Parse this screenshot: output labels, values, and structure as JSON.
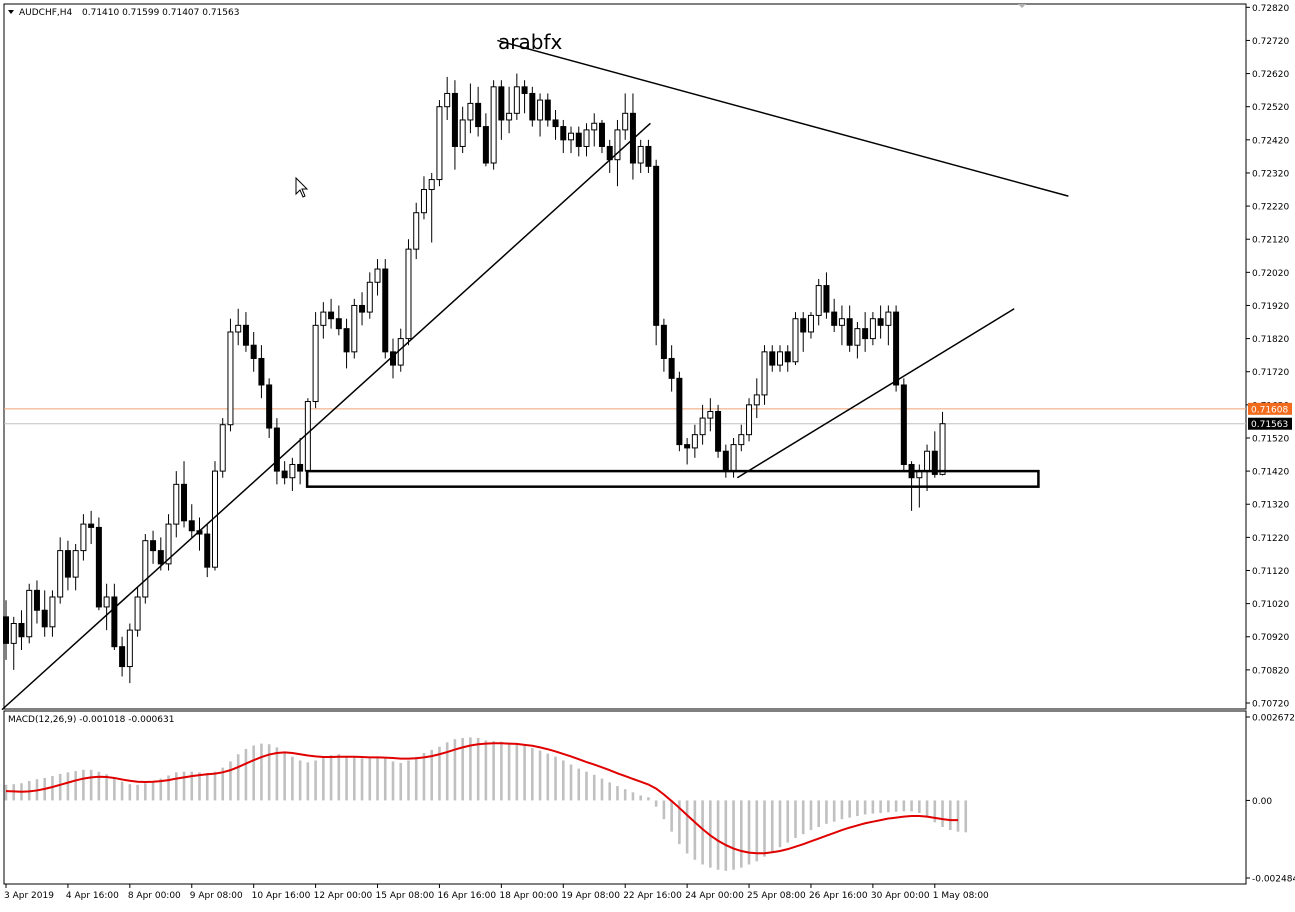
{
  "header": {
    "symbol_label": "AUDCHF,H4",
    "ohlc_text": "0.71410 0.71599 0.71407 0.71563"
  },
  "watermark": "arabfx",
  "price_axis": {
    "ticks": [
      "0.72820",
      "0.72720",
      "0.72620",
      "0.72520",
      "0.72420",
      "0.72320",
      "0.72220",
      "0.72120",
      "0.72020",
      "0.71920",
      "0.71820",
      "0.71720",
      "0.71620",
      "0.71520",
      "0.71420",
      "0.71320",
      "0.71220",
      "0.71120",
      "0.71020",
      "0.70920",
      "0.70820",
      "0.70720"
    ],
    "current_price_label": "0.71563",
    "ask_price_label": "0.71608"
  },
  "macd": {
    "label": "MACD(12,26,9) -0.001018 -0.000631",
    "ticks": [
      "0.002672",
      "0.00",
      "-0.002484"
    ]
  },
  "time_axis": {
    "labels": [
      "3 Apr 2019",
      "4 Apr 16:00",
      "8 Apr 00:00",
      "9 Apr 08:00",
      "10 Apr 16:00",
      "12 Apr 00:00",
      "15 Apr 08:00",
      "16 Apr 16:00",
      "18 Apr 00:00",
      "19 Apr 08:00",
      "22 Apr 16:00",
      "24 Apr 00:00",
      "25 Apr 08:00",
      "26 Apr 16:00",
      "30 Apr 00:00",
      "1 May 08:00"
    ]
  },
  "colors": {
    "background": "#ffffff",
    "grid": "#c8c8c8",
    "candle": "#000000",
    "ask_line": "#f0a070",
    "bid_line": "#c0c0c0",
    "ask_label_bg": "#f26b1d",
    "bid_label_bg": "#000000",
    "macd_histogram": "#c0c0c0",
    "macd_signal": "#e00000"
  },
  "chart_data": [
    {
      "type": "candlestick",
      "title": "AUDCHF,H4",
      "ylim": [
        0.707,
        0.7283
      ],
      "candles": [
        [
          0.7098,
          0.7103,
          0.7085,
          0.709
        ],
        [
          0.709,
          0.7098,
          0.7082,
          0.7096
        ],
        [
          0.7096,
          0.71,
          0.7088,
          0.7092
        ],
        [
          0.7092,
          0.7108,
          0.709,
          0.7106
        ],
        [
          0.7106,
          0.7109,
          0.7096,
          0.71
        ],
        [
          0.71,
          0.7106,
          0.7092,
          0.7095
        ],
        [
          0.7095,
          0.7106,
          0.7092,
          0.7104
        ],
        [
          0.7104,
          0.7122,
          0.7102,
          0.7118
        ],
        [
          0.7118,
          0.7121,
          0.7106,
          0.711
        ],
        [
          0.711,
          0.712,
          0.7106,
          0.7118
        ],
        [
          0.7118,
          0.7129,
          0.7115,
          0.7126
        ],
        [
          0.7126,
          0.713,
          0.712,
          0.7125
        ],
        [
          0.7125,
          0.7128,
          0.71,
          0.7101
        ],
        [
          0.7101,
          0.7108,
          0.7094,
          0.7104
        ],
        [
          0.7104,
          0.7108,
          0.7088,
          0.7089
        ],
        [
          0.7089,
          0.7092,
          0.708,
          0.7083
        ],
        [
          0.7083,
          0.7096,
          0.7078,
          0.7094
        ],
        [
          0.7094,
          0.7107,
          0.7092,
          0.7104
        ],
        [
          0.7104,
          0.7123,
          0.7102,
          0.7121
        ],
        [
          0.7121,
          0.7124,
          0.7114,
          0.7118
        ],
        [
          0.7118,
          0.7122,
          0.7112,
          0.7114
        ],
        [
          0.7114,
          0.7129,
          0.7112,
          0.7126
        ],
        [
          0.7126,
          0.7142,
          0.7122,
          0.7138
        ],
        [
          0.7138,
          0.7145,
          0.7125,
          0.7127
        ],
        [
          0.7127,
          0.7132,
          0.7122,
          0.7124
        ],
        [
          0.7124,
          0.7128,
          0.7118,
          0.7123
        ],
        [
          0.7123,
          0.7126,
          0.711,
          0.7113
        ],
        [
          0.7113,
          0.7145,
          0.7112,
          0.7142
        ],
        [
          0.7142,
          0.7158,
          0.714,
          0.7156
        ],
        [
          0.7156,
          0.7188,
          0.7154,
          0.7184
        ],
        [
          0.7184,
          0.7191,
          0.718,
          0.7186
        ],
        [
          0.7186,
          0.719,
          0.7178,
          0.718
        ],
        [
          0.718,
          0.7184,
          0.7172,
          0.7176
        ],
        [
          0.7176,
          0.718,
          0.7164,
          0.7168
        ],
        [
          0.7168,
          0.717,
          0.7152,
          0.7155
        ],
        [
          0.7155,
          0.7158,
          0.7138,
          0.7142
        ],
        [
          0.7142,
          0.7145,
          0.7138,
          0.714
        ],
        [
          0.714,
          0.7146,
          0.7136,
          0.7144
        ],
        [
          0.7144,
          0.7152,
          0.7138,
          0.7142
        ],
        [
          0.7142,
          0.7164,
          0.714,
          0.7163
        ],
        [
          0.7163,
          0.719,
          0.7161,
          0.7186
        ],
        [
          0.7186,
          0.7193,
          0.7182,
          0.719
        ],
        [
          0.719,
          0.7194,
          0.7185,
          0.7188
        ],
        [
          0.7188,
          0.7192,
          0.7183,
          0.7185
        ],
        [
          0.7185,
          0.7188,
          0.7173,
          0.7178
        ],
        [
          0.7178,
          0.7194,
          0.7176,
          0.7192
        ],
        [
          0.7192,
          0.7196,
          0.7186,
          0.719
        ],
        [
          0.719,
          0.7202,
          0.7188,
          0.7199
        ],
        [
          0.7199,
          0.7206,
          0.7195,
          0.7203
        ],
        [
          0.7203,
          0.7206,
          0.7176,
          0.7178
        ],
        [
          0.7178,
          0.7182,
          0.717,
          0.7174
        ],
        [
          0.7174,
          0.7185,
          0.7172,
          0.7182
        ],
        [
          0.7182,
          0.7212,
          0.718,
          0.7209
        ],
        [
          0.7209,
          0.7223,
          0.7206,
          0.722
        ],
        [
          0.722,
          0.7231,
          0.7218,
          0.7227
        ],
        [
          0.7227,
          0.7232,
          0.7211,
          0.723
        ],
        [
          0.723,
          0.7254,
          0.7228,
          0.7252
        ],
        [
          0.7252,
          0.7261,
          0.7248,
          0.7256
        ],
        [
          0.7256,
          0.726,
          0.7233,
          0.724
        ],
        [
          0.724,
          0.7252,
          0.7238,
          0.7248
        ],
        [
          0.7248,
          0.7259,
          0.7244,
          0.7253
        ],
        [
          0.7253,
          0.7258,
          0.7243,
          0.7246
        ],
        [
          0.7246,
          0.725,
          0.7234,
          0.7235
        ],
        [
          0.7235,
          0.726,
          0.7233,
          0.7258
        ],
        [
          0.7258,
          0.726,
          0.7242,
          0.7248
        ],
        [
          0.7248,
          0.7258,
          0.7244,
          0.725
        ],
        [
          0.725,
          0.7262,
          0.7248,
          0.7258
        ],
        [
          0.7258,
          0.726,
          0.725,
          0.7256
        ],
        [
          0.7256,
          0.7258,
          0.7246,
          0.7248
        ],
        [
          0.7248,
          0.7256,
          0.7243,
          0.7254
        ],
        [
          0.7254,
          0.7256,
          0.7246,
          0.7248
        ],
        [
          0.7248,
          0.7251,
          0.7242,
          0.7246
        ],
        [
          0.7246,
          0.7248,
          0.7238,
          0.7242
        ],
        [
          0.7242,
          0.7246,
          0.7238,
          0.7244
        ],
        [
          0.7244,
          0.7246,
          0.7237,
          0.724
        ],
        [
          0.724,
          0.7247,
          0.7237,
          0.7245
        ],
        [
          0.7245,
          0.725,
          0.724,
          0.7247
        ],
        [
          0.7247,
          0.7248,
          0.7238,
          0.724
        ],
        [
          0.724,
          0.7242,
          0.7232,
          0.7236
        ],
        [
          0.7236,
          0.7248,
          0.7228,
          0.7245
        ],
        [
          0.7245,
          0.7256,
          0.7242,
          0.725
        ],
        [
          0.725,
          0.7256,
          0.723,
          0.7235
        ],
        [
          0.7235,
          0.7242,
          0.7232,
          0.724
        ],
        [
          0.724,
          0.7242,
          0.7232,
          0.7234
        ],
        [
          0.7234,
          0.7236,
          0.718,
          0.7186
        ],
        [
          0.7186,
          0.7188,
          0.7172,
          0.7176
        ],
        [
          0.7176,
          0.718,
          0.7166,
          0.717
        ],
        [
          0.717,
          0.7172,
          0.7148,
          0.715
        ],
        [
          0.715,
          0.7152,
          0.7144,
          0.7149
        ],
        [
          0.7149,
          0.7156,
          0.7146,
          0.7153
        ],
        [
          0.7153,
          0.7162,
          0.715,
          0.7158
        ],
        [
          0.7158,
          0.7164,
          0.7154,
          0.716
        ],
        [
          0.716,
          0.7162,
          0.7146,
          0.7148
        ],
        [
          0.7148,
          0.715,
          0.714,
          0.7142
        ],
        [
          0.7142,
          0.7152,
          0.714,
          0.715
        ],
        [
          0.715,
          0.7156,
          0.7148,
          0.7153
        ],
        [
          0.7153,
          0.7164,
          0.7151,
          0.7162
        ],
        [
          0.7162,
          0.717,
          0.7158,
          0.7165
        ],
        [
          0.7165,
          0.718,
          0.7162,
          0.7178
        ],
        [
          0.7178,
          0.718,
          0.7172,
          0.7174
        ],
        [
          0.7174,
          0.718,
          0.7172,
          0.7178
        ],
        [
          0.7178,
          0.718,
          0.7172,
          0.7175
        ],
        [
          0.7175,
          0.719,
          0.7174,
          0.7188
        ],
        [
          0.7188,
          0.719,
          0.7178,
          0.7184
        ],
        [
          0.7184,
          0.719,
          0.7182,
          0.7189
        ],
        [
          0.7189,
          0.72,
          0.7186,
          0.7198
        ],
        [
          0.7198,
          0.7202,
          0.7188,
          0.719
        ],
        [
          0.719,
          0.7194,
          0.7184,
          0.7186
        ],
        [
          0.7186,
          0.7192,
          0.718,
          0.7188
        ],
        [
          0.7188,
          0.7192,
          0.7178,
          0.718
        ],
        [
          0.718,
          0.7187,
          0.7176,
          0.7185
        ],
        [
          0.7185,
          0.719,
          0.7178,
          0.7182
        ],
        [
          0.7182,
          0.719,
          0.718,
          0.7188
        ],
        [
          0.7188,
          0.7192,
          0.7182,
          0.7186
        ],
        [
          0.7186,
          0.7192,
          0.718,
          0.719
        ],
        [
          0.719,
          0.7192,
          0.7166,
          0.7168
        ],
        [
          0.7168,
          0.717,
          0.7142,
          0.7144
        ],
        [
          0.7144,
          0.7145,
          0.713,
          0.714
        ],
        [
          0.714,
          0.7144,
          0.7131,
          0.7142
        ],
        [
          0.7142,
          0.715,
          0.7136,
          0.7148
        ],
        [
          0.7148,
          0.7154,
          0.714,
          0.7141
        ],
        [
          0.7141,
          0.71599,
          0.71407,
          0.71563
        ]
      ]
    },
    {
      "type": "bar+line",
      "title": "MACD(12,26,9)",
      "ylim": [
        -0.002484,
        0.002672
      ],
      "histogram": [
        0.0005,
        0.00052,
        0.00055,
        0.00062,
        0.00068,
        0.00072,
        0.00078,
        0.00085,
        0.0009,
        0.00094,
        0.00098,
        0.00098,
        0.00092,
        0.00084,
        0.00072,
        0.0006,
        0.00052,
        0.0005,
        0.00055,
        0.00062,
        0.0007,
        0.0008,
        0.0009,
        0.00092,
        0.00092,
        0.0009,
        0.00088,
        0.00092,
        0.00105,
        0.00125,
        0.00148,
        0.00165,
        0.00176,
        0.00182,
        0.0018,
        0.0017,
        0.00155,
        0.0014,
        0.00128,
        0.00122,
        0.00128,
        0.00138,
        0.00145,
        0.00148,
        0.0014,
        0.00138,
        0.00135,
        0.00135,
        0.00138,
        0.00135,
        0.00125,
        0.0012,
        0.00128,
        0.0014,
        0.00152,
        0.00162,
        0.00172,
        0.00186,
        0.00196,
        0.002,
        0.00202,
        0.002,
        0.00192,
        0.0019,
        0.00188,
        0.00184,
        0.0018,
        0.00175,
        0.00168,
        0.0016,
        0.0015,
        0.0014,
        0.00128,
        0.00115,
        0.00102,
        0.00092,
        0.00082,
        0.0007,
        0.00058,
        0.00046,
        0.00036,
        0.00026,
        0.00016,
        0.0001,
        -0.0002,
        -0.0006,
        -0.001,
        -0.0014,
        -0.0017,
        -0.0019,
        -0.00205,
        -0.00215,
        -0.00222,
        -0.00225,
        -0.00222,
        -0.00215,
        -0.00205,
        -0.00195,
        -0.0018,
        -0.00165,
        -0.0015,
        -0.00135,
        -0.0012,
        -0.00108,
        -0.00095,
        -0.00085,
        -0.00075,
        -0.00068,
        -0.0006,
        -0.00055,
        -0.0005,
        -0.00045,
        -0.00042,
        -0.0004,
        -0.00038,
        -0.00036,
        -0.00035,
        -0.00035,
        -0.0004,
        -0.00055,
        -0.0007,
        -0.00085,
        -0.00095,
        -0.001,
        -0.00102
      ],
      "signal": [
        0.0003,
        0.00029,
        0.00028,
        0.00029,
        0.00032,
        0.00037,
        0.00043,
        0.0005,
        0.00057,
        0.00064,
        0.0007,
        0.00074,
        0.00076,
        0.00075,
        0.00072,
        0.00067,
        0.00063,
        0.0006,
        0.00059,
        0.0006,
        0.00062,
        0.00065,
        0.0007,
        0.00074,
        0.00078,
        0.00081,
        0.00084,
        0.00086,
        0.0009,
        0.00097,
        0.00107,
        0.00118,
        0.00129,
        0.00139,
        0.00147,
        0.00152,
        0.00154,
        0.00152,
        0.00148,
        0.00144,
        0.00141,
        0.00139,
        0.00139,
        0.0014,
        0.0014,
        0.0014,
        0.00139,
        0.00138,
        0.00138,
        0.00137,
        0.00136,
        0.00134,
        0.00134,
        0.00135,
        0.00138,
        0.00142,
        0.00148,
        0.00155,
        0.00163,
        0.0017,
        0.00176,
        0.0018,
        0.00182,
        0.00183,
        0.00183,
        0.00182,
        0.00181,
        0.00178,
        0.00175,
        0.0017,
        0.00164,
        0.00157,
        0.00149,
        0.00141,
        0.00132,
        0.00123,
        0.00115,
        0.00106,
        0.00097,
        0.00087,
        0.00078,
        0.00069,
        0.0006,
        0.00051,
        0.00038,
        0.00019,
        -2e-05,
        -0.00024,
        -0.00047,
        -0.0007,
        -0.00092,
        -0.00112,
        -0.00129,
        -0.00143,
        -0.00154,
        -0.00162,
        -0.00167,
        -0.00169,
        -0.00169,
        -0.00166,
        -0.00162,
        -0.00156,
        -0.00148,
        -0.0014,
        -0.00131,
        -0.00122,
        -0.00113,
        -0.00104,
        -0.00095,
        -0.00087,
        -0.0008,
        -0.00073,
        -0.00068,
        -0.00063,
        -0.00058,
        -0.00055,
        -0.00052,
        -0.0005,
        -0.0005,
        -0.00052,
        -0.00056,
        -0.0006,
        -0.00063,
        -0.00063
      ]
    }
  ],
  "drawings": {
    "trendlines": [
      {
        "name": "uptrend-line",
        "points": [
          [
            0.707,
            0
          ],
          [
            0.7247,
            83
          ]
        ]
      },
      {
        "name": "descending-resistance",
        "points": [
          [
            0.7272,
            64
          ],
          [
            0.7225,
            137
          ]
        ]
      },
      {
        "name": "rising-neckline",
        "points": [
          [
            0.714,
            95
          ],
          [
            0.7191,
            130
          ]
        ]
      }
    ],
    "support_zone": {
      "top": 0.7142,
      "bottom": 0.71373
    }
  }
}
